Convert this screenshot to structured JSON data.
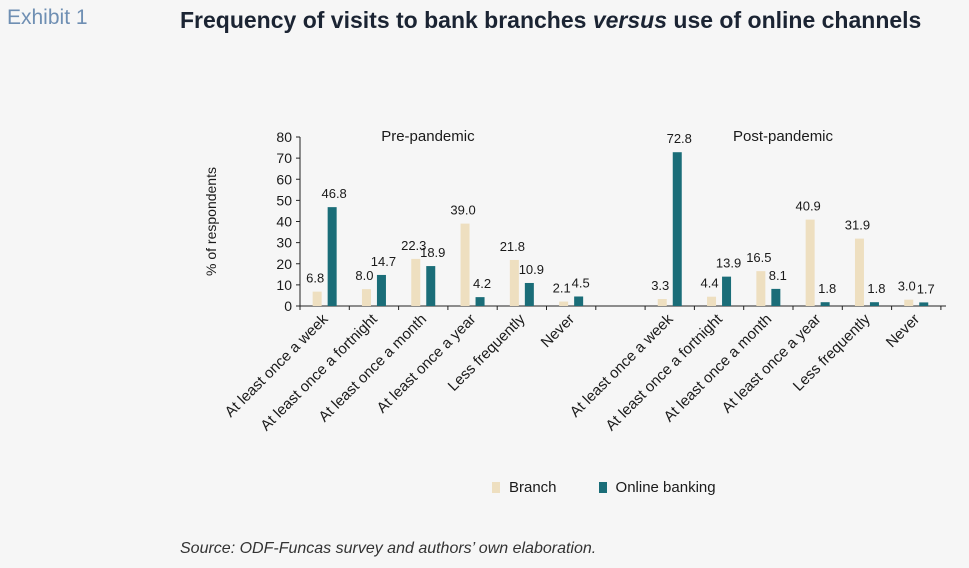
{
  "exhibit_label": "Exhibit 1",
  "title": {
    "part1": "Frequency of visits to bank branches ",
    "italic": "versus",
    "part2": " use of online channels"
  },
  "source": "Source: ODF-Funcas survey and authors’ own elaboration.",
  "colors": {
    "branch": "#eedfc0",
    "online": "#1a6d78"
  },
  "chart_data": {
    "type": "bar",
    "ylabel": "% of respondents",
    "ylim": [
      0,
      80
    ],
    "yticks": [
      0,
      10,
      20,
      30,
      40,
      50,
      60,
      70,
      80
    ],
    "legend_position": "bottom",
    "series_names": [
      "Branch",
      "Online banking"
    ],
    "panels": [
      {
        "label": "Pre-pandemic",
        "categories": [
          "At least once a week",
          "At least once a fortnight",
          "At least once a month",
          "At least once a year",
          "Less frequently",
          "Never"
        ],
        "series": [
          {
            "name": "Branch",
            "values": [
              6.8,
              8.0,
              22.3,
              39.0,
              21.8,
              2.1
            ]
          },
          {
            "name": "Online banking",
            "values": [
              46.8,
              14.7,
              18.9,
              4.2,
              10.9,
              4.5
            ]
          }
        ]
      },
      {
        "label": "Post-pandemic",
        "categories": [
          "At least once a week",
          "At least once a fortnight",
          "At least once a month",
          "At least once a year",
          "Less frequently",
          "Never"
        ],
        "series": [
          {
            "name": "Branch",
            "values": [
              3.3,
              4.4,
              16.5,
              40.9,
              31.9,
              3.0
            ]
          },
          {
            "name": "Online banking",
            "values": [
              72.8,
              13.9,
              8.1,
              1.8,
              1.8,
              1.7
            ]
          }
        ]
      }
    ]
  }
}
